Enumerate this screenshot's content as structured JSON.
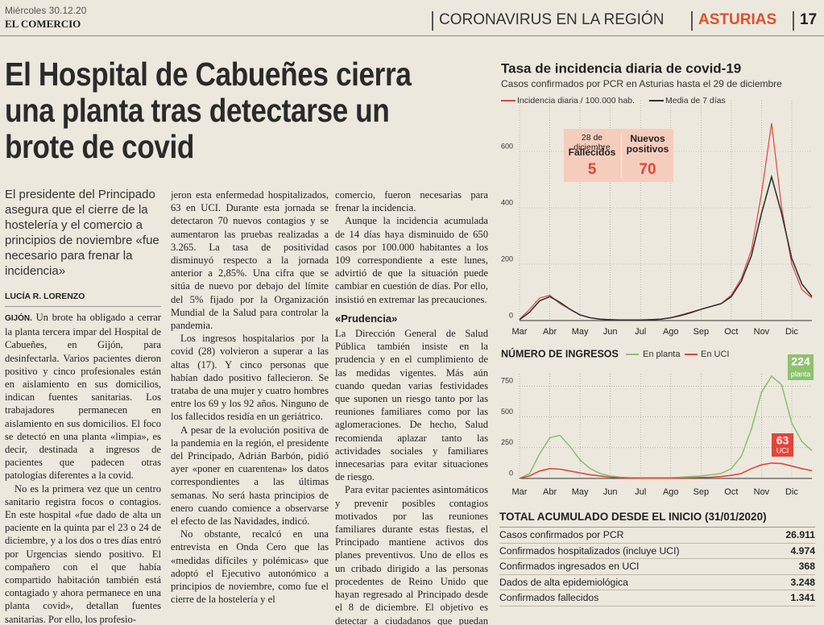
{
  "header": {
    "date": "Miércoles 30.12.20",
    "paper": "EL COMERCIO",
    "section": "CORONAVIRUS EN LA REGIÓN",
    "region": "ASTURIAS",
    "page": "17"
  },
  "article": {
    "headline": "El Hospital de Cabueñes cierra una planta tras detectarse un brote de covid",
    "subhead": "El presidente del Principado asegura que el cierre de la hostelería y el comercio a principios de noviembre «fue necesario para frenar la incidencia»",
    "byline": "LUCÍA R. LORENZO",
    "dateline": "GIJÓN.",
    "subheading": "«Prudencia»",
    "columns": [
      [
        "Un brote ha obligado a cerrar la planta tercera impar del Hospital de Cabueñes, en Gijón, para desinfectarla. Varios pacientes dieron positivo y cinco profesionales están en aislamiento en sus domicilios, indican fuentes sanitarias. Los trabajadores permanecen en aislamiento en sus domicilios. El foco se detectó en una planta «limpia», es decir, destinada a ingresos de pacientes que padecen otras patologías diferentes a la covid.",
        "No es la primera vez que un centro sanitario registra focos o contagios. En este hospital «fue dado de alta un paciente en la quinta par el 23 o 24 de diciembre, y a los dos o tres días entró por Urgencias siendo positivo. El compañero con el que había compartido habitación también está contagiado y ahora permanece en una planta covid», detallan fuentes sanitarias. Por ello, los profesio-"
      ],
      [
        "jeron esta enfermedad hospitalizados, 63 en UCI. Durante esta jornada se detectaron 70 nuevos contagios y se aumentaron las pruebas realizadas a 3.265. La tasa de positividad disminuyó respecto a la jornada anterior a 2,85%. Una cifra que se sitúa de nuevo por debajo del límite del 5% fijado por la Organización Mundial de la Salud para controlar la pandemia.",
        "Los ingresos hospitalarios por la covid (28) volvieron a superar a las altas (17). Y cinco personas que habían dado positivo fallecieron. Se trataba de una mujer y cuatro hombres entre los 69 y los 92 años. Ninguno de los fallecidos residía en un geriátrico.",
        "A pesar de la evolución positiva de la pandemia en la región, el presidente del Principado, Adrián Barbón, pidió ayer «poner en cuarentena» los datos correspondientes a las últimas semanas. No será hasta principios de enero cuando comience a observarse el efecto de las Navidades, indicó.",
        "No obstante, recalcó en una entrevista en Onda Cero que las «medidas difíciles y polémicas» que adoptó el Ejecutivo autonómico a principios de noviembre, como fue el cierre de la hostelería y el"
      ],
      [
        "comercio, fueron necesarias para frenar la incidencia.",
        "Aunque la incidencia acumulada de 14 días haya disminuido de 650 casos por 100.000 habitantes a los 109 correspondiente a este lunes, advirtió de que la situación puede cambiar en cuestión de días. Por ello, insistió en extremar las precauciones.",
        "La Dirección General de Salud Pública también insiste en la prudencia y en el cumplimiento de las medidas vigentes. Más aún cuando quedan varias festividades que suponen un riesgo tanto por las reuniones familiares como por las aglomeraciones. De hecho, Salud recomienda aplazar tanto las actividades sociales y familiares innecesarias para evitar situaciones de riesgo.",
        "Para evitar pacientes asintomáticos y prevenir posibles contagios motivados por las reuniones familiares durante estas fiestas, el Principado mantiene activos dos planes preventivos. Uno de ellos es un cribado dirigido a las personas procedentes de Reino Unido que hayan regresado al Principado desde el 8 de diciembre. El objetivo es detectar a ciudadanos que puedan haberse con-"
      ]
    ]
  },
  "chart_data": [
    {
      "type": "line",
      "title": "Tasa de incidencia diaria de covid-19",
      "subtitle": "Casos confirmados por PCR en Asturias hasta el 29 de diciembre",
      "categories": [
        "Mar",
        null,
        null,
        "Abr",
        null,
        null,
        "May",
        null,
        null,
        "Jun",
        null,
        null,
        "Jul",
        null,
        null,
        "Ago",
        null,
        null,
        "Sep",
        null,
        null,
        "Oct",
        null,
        null,
        "Nov",
        null,
        null,
        "Dic",
        null,
        null
      ],
      "series": [
        {
          "name": "Incidencia diaria / 100.000 hab.",
          "color": "#e0463a",
          "values": [
            5,
            40,
            80,
            90,
            60,
            40,
            20,
            10,
            5,
            3,
            2,
            2,
            2,
            3,
            5,
            10,
            20,
            30,
            40,
            50,
            60,
            90,
            150,
            250,
            450,
            700,
            400,
            200,
            110,
            80
          ]
        },
        {
          "name": "Media de 7 días",
          "color": "#333333",
          "values": [
            3,
            30,
            70,
            85,
            65,
            40,
            20,
            10,
            5,
            3,
            2,
            2,
            2,
            3,
            5,
            10,
            18,
            28,
            40,
            50,
            60,
            85,
            140,
            230,
            380,
            510,
            380,
            220,
            130,
            85
          ]
        }
      ],
      "ylim": [
        0,
        780
      ],
      "yticks": [
        0,
        200,
        400,
        600
      ],
      "grid": true,
      "annotation": {
        "date": "28 de diciembre",
        "items": [
          {
            "label": "Fallecidos",
            "value": "5"
          },
          {
            "label": "Nuevos positivos",
            "value": "70"
          }
        ]
      }
    },
    {
      "type": "line",
      "title": "NÚMERO DE INGRESOS",
      "categories": [
        "Mar",
        null,
        null,
        "Abr",
        null,
        null,
        "May",
        null,
        null,
        "Jun",
        null,
        null,
        "Jul",
        null,
        null,
        "Ago",
        null,
        null,
        "Sep",
        null,
        null,
        "Oct",
        null,
        null,
        "Nov",
        null,
        null,
        "Dic",
        null,
        null
      ],
      "series": [
        {
          "name": "En planta",
          "color": "#8dc26f",
          "end_label": "planta",
          "values": [
            0,
            40,
            200,
            330,
            350,
            260,
            150,
            80,
            40,
            20,
            10,
            5,
            5,
            5,
            5,
            5,
            10,
            15,
            20,
            30,
            40,
            80,
            180,
            400,
            700,
            830,
            760,
            450,
            300,
            224
          ]
        },
        {
          "name": "En UCI",
          "color": "#e0463a",
          "end_label": "UCI",
          "values": [
            0,
            20,
            60,
            80,
            75,
            60,
            45,
            30,
            20,
            10,
            5,
            3,
            2,
            2,
            2,
            2,
            3,
            5,
            8,
            10,
            15,
            25,
            40,
            80,
            110,
            125,
            120,
            100,
            80,
            63
          ]
        }
      ],
      "ylim": [
        0,
        850
      ],
      "yticks": [
        0,
        250,
        500,
        750
      ],
      "grid": true
    }
  ],
  "table": {
    "title": "TOTAL ACUMULADO DESDE EL INICIO (31/01/2020)",
    "rows": [
      [
        "Casos confirmados por PCR",
        "26.911"
      ],
      [
        "Confirmados hospitalizados (incluye UCI)",
        "4.974"
      ],
      [
        "Confirmados ingresados en UCI",
        "368"
      ],
      [
        "Dados de alta epidemiológica",
        "3.248"
      ],
      [
        "Confirmados fallecidos",
        "1.341"
      ]
    ]
  }
}
